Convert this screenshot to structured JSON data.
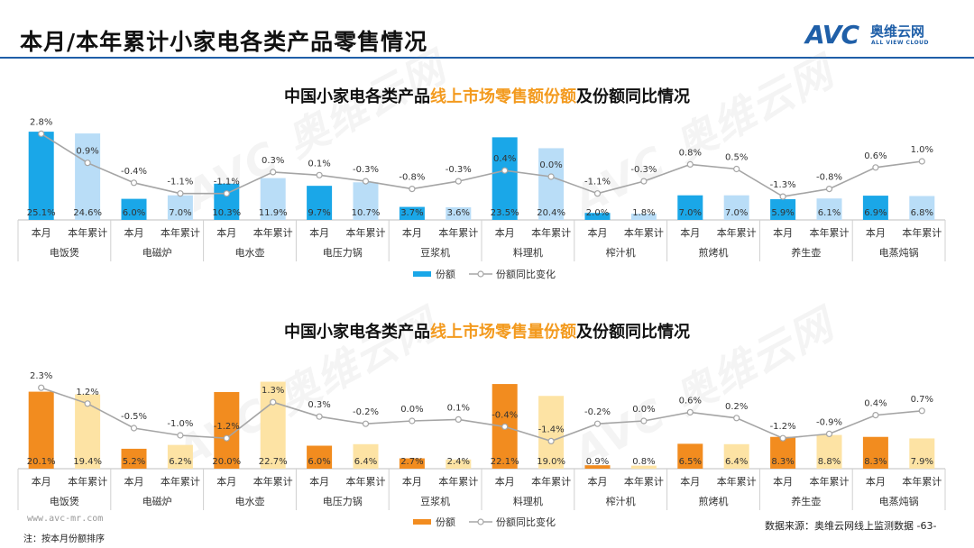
{
  "page": {
    "title": "本月/本年累计小家电各类产品零售情况",
    "logo_text": "AVC",
    "logo_cn": "奥维云网",
    "logo_en": "ALL VIEW CLOUD",
    "website": "www.avc-mr.com",
    "note": "注：按本月份额排序",
    "source": "数据来源：奥维云网线上监测数据 -63-",
    "watermark": "AVC 奥维云网"
  },
  "colors": {
    "brand_blue": "#1f5fa8",
    "accent_orange": "#f39a1e",
    "bar_blue_dark": "#1aa7e8",
    "bar_blue_light": "#b9ddf7",
    "bar_orange_dark": "#f28c1f",
    "bar_orange_light": "#fde3a4",
    "line_gray": "#a5a5a5"
  },
  "chart_data": [
    {
      "type": "bar",
      "title_pre": "中国小家电各类产品",
      "title_hl": "线上市场零售额份额",
      "title_post": "及份额同比情况",
      "categories": [
        "电饭煲",
        "电磁炉",
        "电水壶",
        "电压力锅",
        "豆浆机",
        "料理机",
        "榨汁机",
        "煎烤机",
        "养生壶",
        "电蒸炖锅"
      ],
      "sub_labels": [
        "本月",
        "本年累计"
      ],
      "series": [
        {
          "name": "份额",
          "monthly": [
            25.1,
            6.0,
            10.3,
            9.7,
            3.7,
            23.5,
            2.0,
            7.0,
            5.9,
            6.9
          ],
          "ytd": [
            24.6,
            7.0,
            11.9,
            10.7,
            3.6,
            20.4,
            1.8,
            7.0,
            6.1,
            6.8
          ]
        },
        {
          "name": "份额同比变化",
          "monthly": [
            2.8,
            -0.4,
            -1.1,
            0.1,
            -0.8,
            0.4,
            -1.1,
            0.8,
            -1.3,
            0.6
          ],
          "ytd": [
            0.9,
            -1.1,
            0.3,
            -0.3,
            -0.3,
            0.0,
            -0.3,
            0.5,
            -0.8,
            1.0
          ]
        }
      ],
      "legend": [
        "份额",
        "份额同比变化"
      ],
      "unit": "%"
    },
    {
      "type": "bar",
      "title_pre": "中国小家电各类产品",
      "title_hl": "线上市场零售量份额",
      "title_post": "及份额同比情况",
      "categories": [
        "电饭煲",
        "电磁炉",
        "电水壶",
        "电压力锅",
        "豆浆机",
        "料理机",
        "榨汁机",
        "煎烤机",
        "养生壶",
        "电蒸炖锅"
      ],
      "sub_labels": [
        "本月",
        "本年累计"
      ],
      "series": [
        {
          "name": "份额",
          "monthly": [
            20.1,
            5.2,
            20.0,
            6.0,
            2.7,
            22.1,
            0.9,
            6.5,
            8.3,
            8.3
          ],
          "ytd": [
            19.4,
            6.2,
            22.7,
            6.4,
            2.4,
            19.0,
            0.8,
            6.4,
            8.8,
            7.9
          ]
        },
        {
          "name": "份额同比变化",
          "monthly": [
            2.3,
            -0.5,
            -1.2,
            0.3,
            0.0,
            -0.4,
            -0.2,
            0.6,
            -1.2,
            0.4
          ],
          "ytd": [
            1.2,
            -1.0,
            1.3,
            -0.2,
            0.1,
            -1.4,
            0.0,
            0.2,
            -0.9,
            0.7
          ]
        }
      ],
      "legend": [
        "份额",
        "份额同比变化"
      ],
      "unit": "%"
    }
  ]
}
